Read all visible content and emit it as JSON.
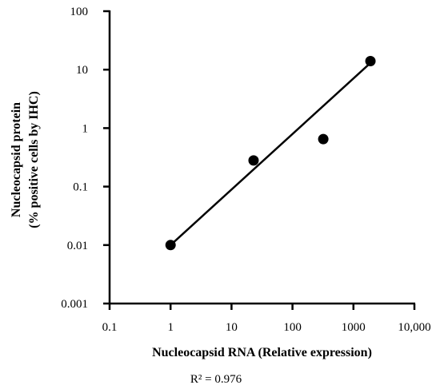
{
  "chart_data": {
    "type": "scatter",
    "xlabel": "Nucleocapsid RNA (Relative expression)",
    "ylabel_line1": "Nucleocapsid protein",
    "ylabel_line2": "(% positive cells by IHC)",
    "x_scale": "log",
    "y_scale": "log",
    "xlim": [
      0.1,
      10000
    ],
    "ylim": [
      0.001,
      100
    ],
    "x_ticks": [
      {
        "value": 0.1,
        "label": "0.1"
      },
      {
        "value": 1,
        "label": "1"
      },
      {
        "value": 10,
        "label": "10"
      },
      {
        "value": 100,
        "label": "100"
      },
      {
        "value": 1000,
        "label": "1000"
      },
      {
        "value": 10000,
        "label": "10,000"
      }
    ],
    "y_ticks": [
      {
        "value": 0.001,
        "label": "0.001"
      },
      {
        "value": 0.01,
        "label": "0.01"
      },
      {
        "value": 0.1,
        "label": "0.1"
      },
      {
        "value": 1,
        "label": "1"
      },
      {
        "value": 10,
        "label": "10"
      },
      {
        "value": 100,
        "label": "100"
      }
    ],
    "points": [
      {
        "x": 1,
        "y": 0.01
      },
      {
        "x": 23,
        "y": 0.28
      },
      {
        "x": 320,
        "y": 0.65
      },
      {
        "x": 1900,
        "y": 14
      }
    ],
    "fit_line": {
      "x": [
        1,
        1900
      ],
      "y": [
        0.01,
        13
      ]
    },
    "annotation": "R² = 0.976",
    "grid": false,
    "marker_color": "#000000"
  }
}
